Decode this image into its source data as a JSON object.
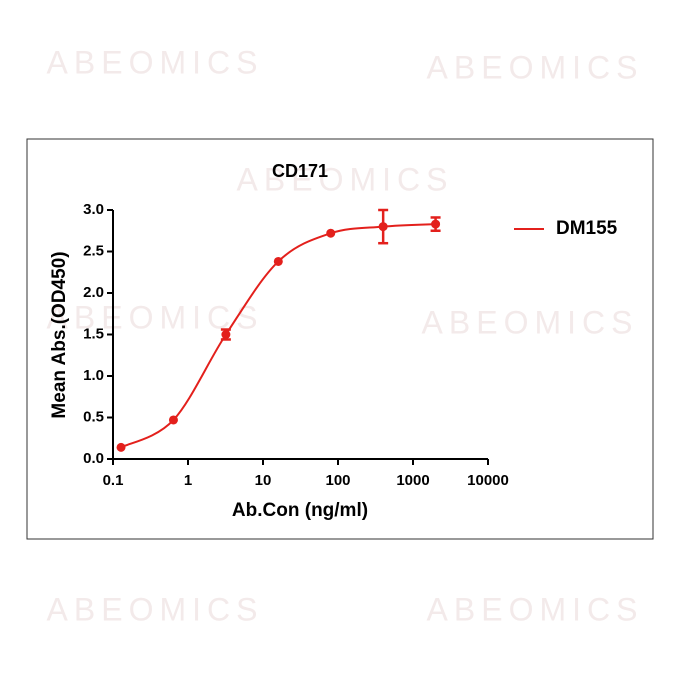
{
  "chart_data": {
    "type": "scatter",
    "title": "CD171",
    "watermark": "ABEOMICS",
    "xlabel": "Ab.Con (ng/ml)",
    "ylabel": "Mean Abs.(OD450)",
    "xscale": "log",
    "xlim": [
      0.1,
      10000
    ],
    "xticks": [
      0.1,
      1,
      10,
      100,
      1000,
      10000
    ],
    "ylim": [
      0,
      3
    ],
    "yticks": [
      {
        "value": 0,
        "label": "0.0"
      },
      {
        "value": 0.5,
        "label": "0.5"
      },
      {
        "value": 1,
        "label": "1.0"
      },
      {
        "value": 1.5,
        "label": "1.5"
      },
      {
        "value": 2,
        "label": "2.0"
      },
      {
        "value": 2.5,
        "label": "2.5"
      },
      {
        "value": 3,
        "label": "3.0"
      }
    ],
    "legend": "right",
    "series": [
      {
        "name": "DM155",
        "color": "#e3201c",
        "x": [
          0.128,
          0.64,
          3.2,
          16,
          80,
          400,
          2000
        ],
        "values": [
          0.14,
          0.47,
          1.5,
          2.38,
          2.72,
          2.8,
          2.83
        ],
        "errors": [
          0,
          0,
          0.06,
          0,
          0,
          0.2,
          0.08
        ]
      }
    ]
  }
}
